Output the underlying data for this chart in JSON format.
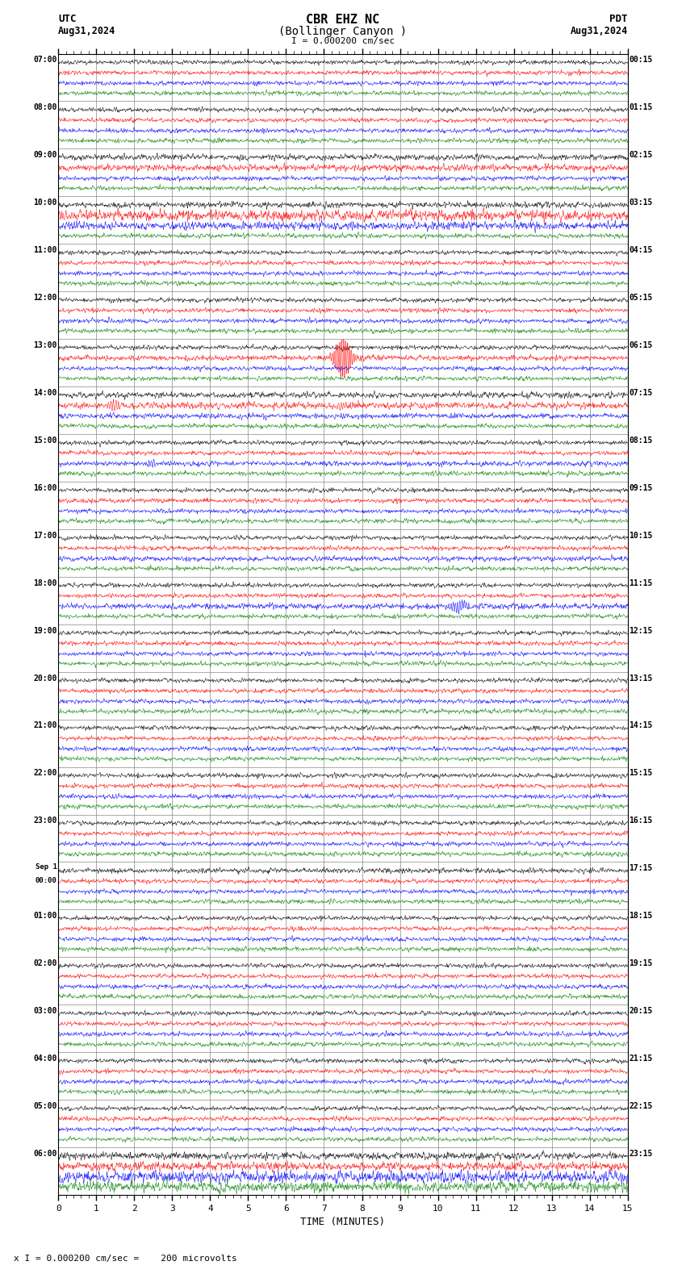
{
  "title_line1": "CBR EHZ NC",
  "title_line2": "(Bollinger Canyon )",
  "title_scale": "I = 0.000200 cm/sec",
  "label_utc": "UTC",
  "label_pdt": "PDT",
  "label_date_left": "Aug31,2024",
  "label_date_right": "Aug31,2024",
  "footer_scale": "x I = 0.000200 cm/sec =    200 microvolts",
  "xlabel": "TIME (MINUTES)",
  "left_times": [
    "07:00",
    "08:00",
    "09:00",
    "10:00",
    "11:00",
    "12:00",
    "13:00",
    "14:00",
    "15:00",
    "16:00",
    "17:00",
    "18:00",
    "19:00",
    "20:00",
    "21:00",
    "22:00",
    "23:00",
    "Sep 1\n00:00",
    "01:00",
    "02:00",
    "03:00",
    "04:00",
    "05:00",
    "06:00"
  ],
  "right_times": [
    "00:15",
    "01:15",
    "02:15",
    "03:15",
    "04:15",
    "05:15",
    "06:15",
    "07:15",
    "08:15",
    "09:15",
    "10:15",
    "11:15",
    "12:15",
    "13:15",
    "14:15",
    "15:15",
    "16:15",
    "17:15",
    "18:15",
    "19:15",
    "20:15",
    "21:15",
    "22:15",
    "23:15"
  ],
  "n_rows": 24,
  "traces_per_row": 4,
  "colors": [
    "black",
    "red",
    "blue",
    "green"
  ],
  "bg_color": "white",
  "grid_color": "#888888",
  "figsize": [
    8.5,
    15.84
  ],
  "dpi": 100
}
